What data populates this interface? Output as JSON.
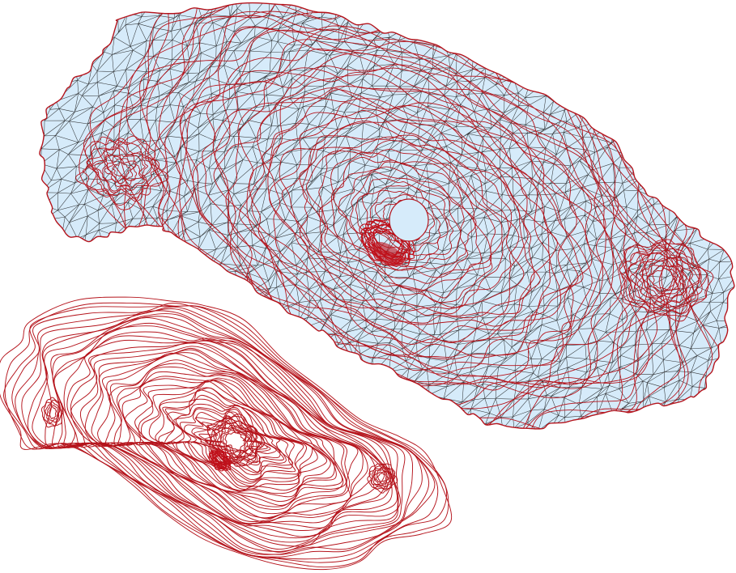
{
  "figure": {
    "panels": [
      {
        "name": "triangulated-mesh-with-contours",
        "fill_color": "#d6ebfa",
        "mesh_color": "#1a1a1a",
        "contour_color": "#b5141c"
      },
      {
        "name": "contour-lines",
        "contour_color": "#b5141c"
      }
    ]
  },
  "colors": {
    "background": "#ffffff",
    "mesh_fill": "#d6ebfa",
    "mesh_edges": "#1a1a1a",
    "contours": "#b5141c",
    "dense_contours": "#c0101a"
  }
}
